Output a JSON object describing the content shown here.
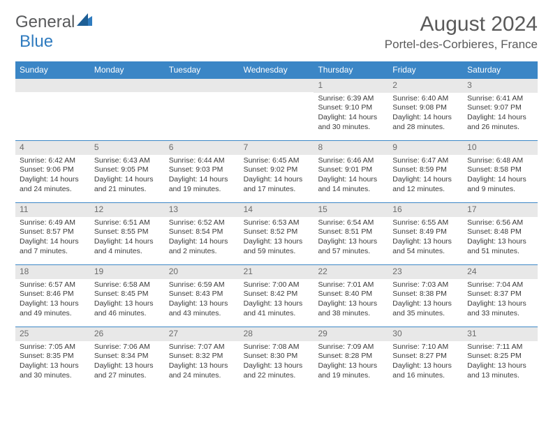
{
  "logo": {
    "part1": "General",
    "part2": "Blue"
  },
  "colors": {
    "header_bg": "#3b86c6",
    "header_text": "#ffffff",
    "daynum_bg": "#e8e8e8",
    "daynum_text": "#6b6b6b",
    "body_text": "#3a3a3a",
    "title_text": "#5a5a5a",
    "border": "#3b86c6"
  },
  "title": "August 2024",
  "location": "Portel-des-Corbieres, France",
  "weekdays": [
    "Sunday",
    "Monday",
    "Tuesday",
    "Wednesday",
    "Thursday",
    "Friday",
    "Saturday"
  ],
  "weeks": [
    [
      {
        "num": "",
        "sunrise": "",
        "sunset": "",
        "daylight": ""
      },
      {
        "num": "",
        "sunrise": "",
        "sunset": "",
        "daylight": ""
      },
      {
        "num": "",
        "sunrise": "",
        "sunset": "",
        "daylight": ""
      },
      {
        "num": "",
        "sunrise": "",
        "sunset": "",
        "daylight": ""
      },
      {
        "num": "1",
        "sunrise": "Sunrise: 6:39 AM",
        "sunset": "Sunset: 9:10 PM",
        "daylight": "Daylight: 14 hours and 30 minutes."
      },
      {
        "num": "2",
        "sunrise": "Sunrise: 6:40 AM",
        "sunset": "Sunset: 9:08 PM",
        "daylight": "Daylight: 14 hours and 28 minutes."
      },
      {
        "num": "3",
        "sunrise": "Sunrise: 6:41 AM",
        "sunset": "Sunset: 9:07 PM",
        "daylight": "Daylight: 14 hours and 26 minutes."
      }
    ],
    [
      {
        "num": "4",
        "sunrise": "Sunrise: 6:42 AM",
        "sunset": "Sunset: 9:06 PM",
        "daylight": "Daylight: 14 hours and 24 minutes."
      },
      {
        "num": "5",
        "sunrise": "Sunrise: 6:43 AM",
        "sunset": "Sunset: 9:05 PM",
        "daylight": "Daylight: 14 hours and 21 minutes."
      },
      {
        "num": "6",
        "sunrise": "Sunrise: 6:44 AM",
        "sunset": "Sunset: 9:03 PM",
        "daylight": "Daylight: 14 hours and 19 minutes."
      },
      {
        "num": "7",
        "sunrise": "Sunrise: 6:45 AM",
        "sunset": "Sunset: 9:02 PM",
        "daylight": "Daylight: 14 hours and 17 minutes."
      },
      {
        "num": "8",
        "sunrise": "Sunrise: 6:46 AM",
        "sunset": "Sunset: 9:01 PM",
        "daylight": "Daylight: 14 hours and 14 minutes."
      },
      {
        "num": "9",
        "sunrise": "Sunrise: 6:47 AM",
        "sunset": "Sunset: 8:59 PM",
        "daylight": "Daylight: 14 hours and 12 minutes."
      },
      {
        "num": "10",
        "sunrise": "Sunrise: 6:48 AM",
        "sunset": "Sunset: 8:58 PM",
        "daylight": "Daylight: 14 hours and 9 minutes."
      }
    ],
    [
      {
        "num": "11",
        "sunrise": "Sunrise: 6:49 AM",
        "sunset": "Sunset: 8:57 PM",
        "daylight": "Daylight: 14 hours and 7 minutes."
      },
      {
        "num": "12",
        "sunrise": "Sunrise: 6:51 AM",
        "sunset": "Sunset: 8:55 PM",
        "daylight": "Daylight: 14 hours and 4 minutes."
      },
      {
        "num": "13",
        "sunrise": "Sunrise: 6:52 AM",
        "sunset": "Sunset: 8:54 PM",
        "daylight": "Daylight: 14 hours and 2 minutes."
      },
      {
        "num": "14",
        "sunrise": "Sunrise: 6:53 AM",
        "sunset": "Sunset: 8:52 PM",
        "daylight": "Daylight: 13 hours and 59 minutes."
      },
      {
        "num": "15",
        "sunrise": "Sunrise: 6:54 AM",
        "sunset": "Sunset: 8:51 PM",
        "daylight": "Daylight: 13 hours and 57 minutes."
      },
      {
        "num": "16",
        "sunrise": "Sunrise: 6:55 AM",
        "sunset": "Sunset: 8:49 PM",
        "daylight": "Daylight: 13 hours and 54 minutes."
      },
      {
        "num": "17",
        "sunrise": "Sunrise: 6:56 AM",
        "sunset": "Sunset: 8:48 PM",
        "daylight": "Daylight: 13 hours and 51 minutes."
      }
    ],
    [
      {
        "num": "18",
        "sunrise": "Sunrise: 6:57 AM",
        "sunset": "Sunset: 8:46 PM",
        "daylight": "Daylight: 13 hours and 49 minutes."
      },
      {
        "num": "19",
        "sunrise": "Sunrise: 6:58 AM",
        "sunset": "Sunset: 8:45 PM",
        "daylight": "Daylight: 13 hours and 46 minutes."
      },
      {
        "num": "20",
        "sunrise": "Sunrise: 6:59 AM",
        "sunset": "Sunset: 8:43 PM",
        "daylight": "Daylight: 13 hours and 43 minutes."
      },
      {
        "num": "21",
        "sunrise": "Sunrise: 7:00 AM",
        "sunset": "Sunset: 8:42 PM",
        "daylight": "Daylight: 13 hours and 41 minutes."
      },
      {
        "num": "22",
        "sunrise": "Sunrise: 7:01 AM",
        "sunset": "Sunset: 8:40 PM",
        "daylight": "Daylight: 13 hours and 38 minutes."
      },
      {
        "num": "23",
        "sunrise": "Sunrise: 7:03 AM",
        "sunset": "Sunset: 8:38 PM",
        "daylight": "Daylight: 13 hours and 35 minutes."
      },
      {
        "num": "24",
        "sunrise": "Sunrise: 7:04 AM",
        "sunset": "Sunset: 8:37 PM",
        "daylight": "Daylight: 13 hours and 33 minutes."
      }
    ],
    [
      {
        "num": "25",
        "sunrise": "Sunrise: 7:05 AM",
        "sunset": "Sunset: 8:35 PM",
        "daylight": "Daylight: 13 hours and 30 minutes."
      },
      {
        "num": "26",
        "sunrise": "Sunrise: 7:06 AM",
        "sunset": "Sunset: 8:34 PM",
        "daylight": "Daylight: 13 hours and 27 minutes."
      },
      {
        "num": "27",
        "sunrise": "Sunrise: 7:07 AM",
        "sunset": "Sunset: 8:32 PM",
        "daylight": "Daylight: 13 hours and 24 minutes."
      },
      {
        "num": "28",
        "sunrise": "Sunrise: 7:08 AM",
        "sunset": "Sunset: 8:30 PM",
        "daylight": "Daylight: 13 hours and 22 minutes."
      },
      {
        "num": "29",
        "sunrise": "Sunrise: 7:09 AM",
        "sunset": "Sunset: 8:28 PM",
        "daylight": "Daylight: 13 hours and 19 minutes."
      },
      {
        "num": "30",
        "sunrise": "Sunrise: 7:10 AM",
        "sunset": "Sunset: 8:27 PM",
        "daylight": "Daylight: 13 hours and 16 minutes."
      },
      {
        "num": "31",
        "sunrise": "Sunrise: 7:11 AM",
        "sunset": "Sunset: 8:25 PM",
        "daylight": "Daylight: 13 hours and 13 minutes."
      }
    ]
  ]
}
